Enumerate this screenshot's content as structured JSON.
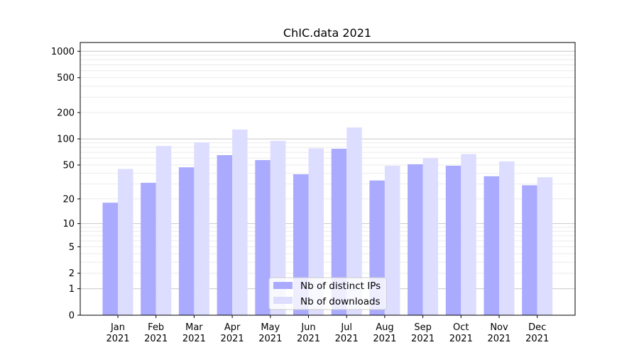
{
  "chart_data": {
    "type": "bar",
    "title": "ChIC.data 2021",
    "xlabel": "",
    "ylabel": "",
    "yscale": "log(1+x)",
    "ylim": [
      0,
      1300
    ],
    "grid": true,
    "legend_position": "lower center",
    "categories": [
      "Jan\n2021",
      "Feb\n2021",
      "Mar\n2021",
      "Apr\n2021",
      "May\n2021",
      "Jun\n2021",
      "Jul\n2021",
      "Aug\n2021",
      "Sep\n2021",
      "Oct\n2021",
      "Nov\n2021",
      "Dec\n2021"
    ],
    "yticks": [
      0,
      1,
      2,
      5,
      10,
      20,
      50,
      100,
      200,
      500,
      1000
    ],
    "series": [
      {
        "name": "Nb of distinct IPs",
        "color": "#aaaaff",
        "values": [
          18,
          31,
          47,
          65,
          57,
          39,
          77,
          33,
          51,
          49,
          37,
          29
        ]
      },
      {
        "name": "Nb of downloads",
        "color": "#ddddff",
        "values": [
          45,
          83,
          91,
          128,
          95,
          78,
          135,
          49,
          60,
          67,
          55,
          36
        ]
      }
    ]
  }
}
